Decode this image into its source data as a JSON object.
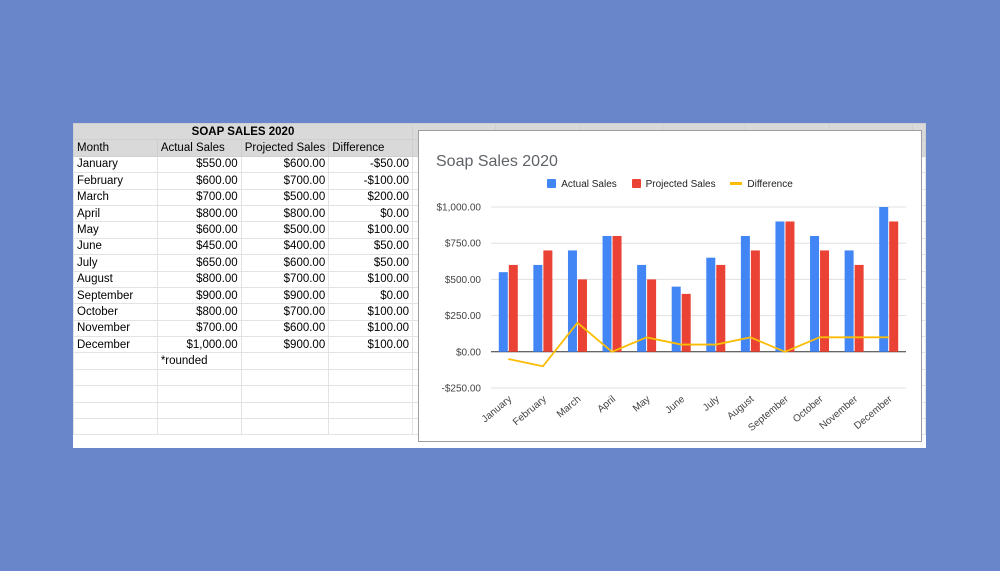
{
  "sheet": {
    "title": "SOAP SALES 2020",
    "headers": [
      "Month",
      "Actual Sales",
      "Projected Sales",
      "Difference"
    ],
    "rows": [
      [
        "January",
        "$550.00",
        "$600.00",
        "-$50.00"
      ],
      [
        "February",
        "$600.00",
        "$700.00",
        "-$100.00"
      ],
      [
        "March",
        "$700.00",
        "$500.00",
        "$200.00"
      ],
      [
        "April",
        "$800.00",
        "$800.00",
        "$0.00"
      ],
      [
        "May",
        "$600.00",
        "$500.00",
        "$100.00"
      ],
      [
        "June",
        "$450.00",
        "$400.00",
        "$50.00"
      ],
      [
        "July",
        "$650.00",
        "$600.00",
        "$50.00"
      ],
      [
        "August",
        "$800.00",
        "$700.00",
        "$100.00"
      ],
      [
        "September",
        "$900.00",
        "$900.00",
        "$0.00"
      ],
      [
        "October",
        "$800.00",
        "$700.00",
        "$100.00"
      ],
      [
        "November",
        "$700.00",
        "$600.00",
        "$100.00"
      ],
      [
        "December",
        "$1,000.00",
        "$900.00",
        "$100.00"
      ]
    ],
    "note": "*rounded"
  },
  "chart_data": {
    "type": "bar",
    "title": "Soap Sales 2020",
    "categories": [
      "January",
      "February",
      "March",
      "April",
      "May",
      "June",
      "July",
      "August",
      "September",
      "October",
      "November",
      "December"
    ],
    "series": [
      {
        "name": "Actual Sales",
        "type": "bar",
        "color": "#4285f4",
        "values": [
          550,
          600,
          700,
          800,
          600,
          450,
          650,
          800,
          900,
          800,
          700,
          1000
        ]
      },
      {
        "name": "Projected Sales",
        "type": "bar",
        "color": "#ea4335",
        "values": [
          600,
          700,
          500,
          800,
          500,
          400,
          600,
          700,
          900,
          700,
          600,
          900
        ]
      },
      {
        "name": "Difference",
        "type": "line",
        "color": "#fbbc04",
        "values": [
          -50,
          -100,
          200,
          0,
          100,
          50,
          50,
          100,
          0,
          100,
          100,
          100
        ]
      }
    ],
    "ylim": [
      -250,
      1000
    ],
    "yticks": [
      -250,
      0,
      250,
      500,
      750,
      1000
    ],
    "ytick_labels": [
      "-$250.00",
      "$0.00",
      "$250.00",
      "$500.00",
      "$750.00",
      "$1,000.00"
    ],
    "grid": true,
    "legend": "top"
  }
}
